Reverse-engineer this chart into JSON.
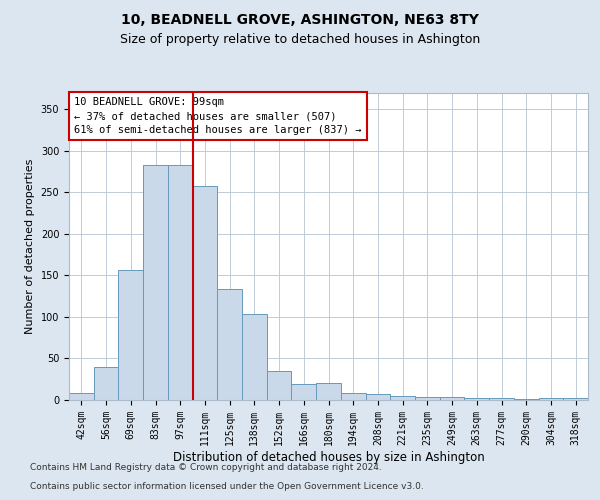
{
  "title": "10, BEADNELL GROVE, ASHINGTON, NE63 8TY",
  "subtitle": "Size of property relative to detached houses in Ashington",
  "xlabel": "Distribution of detached houses by size in Ashington",
  "ylabel": "Number of detached properties",
  "categories": [
    "42sqm",
    "56sqm",
    "69sqm",
    "83sqm",
    "97sqm",
    "111sqm",
    "125sqm",
    "138sqm",
    "152sqm",
    "166sqm",
    "180sqm",
    "194sqm",
    "208sqm",
    "221sqm",
    "235sqm",
    "249sqm",
    "263sqm",
    "277sqm",
    "290sqm",
    "304sqm",
    "318sqm"
  ],
  "values": [
    8,
    40,
    157,
    283,
    283,
    258,
    133,
    103,
    35,
    19,
    20,
    8,
    7,
    5,
    4,
    4,
    2,
    2,
    1,
    2,
    2
  ],
  "bar_color": "#c9d9ea",
  "bar_edge_color": "#6699bb",
  "line_color": "#cc0000",
  "line_x_index": 4.5,
  "annotation_text": "10 BEADNELL GROVE: 99sqm\n← 37% of detached houses are smaller (507)\n61% of semi-detached houses are larger (837) →",
  "annotation_box_color": "#ffffff",
  "annotation_box_edge_color": "#cc0000",
  "ylim": [
    0,
    370
  ],
  "yticks": [
    0,
    50,
    100,
    150,
    200,
    250,
    300,
    350
  ],
  "background_color": "#dce6f0",
  "plot_background": "#ffffff",
  "grid_color": "#c0ccd8",
  "footnote1": "Contains HM Land Registry data © Crown copyright and database right 2024.",
  "footnote2": "Contains public sector information licensed under the Open Government Licence v3.0.",
  "title_fontsize": 10,
  "subtitle_fontsize": 9,
  "xlabel_fontsize": 8.5,
  "ylabel_fontsize": 8,
  "tick_fontsize": 7,
  "annotation_fontsize": 7.5,
  "footnote_fontsize": 6.5
}
